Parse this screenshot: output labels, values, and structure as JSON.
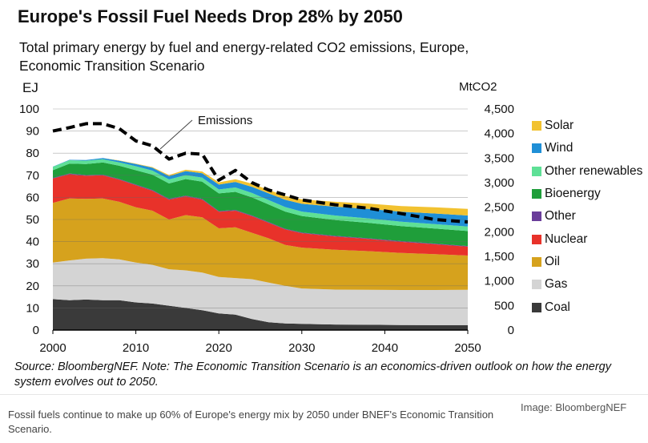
{
  "title": "Europe's Fossil Fuel Needs Drop 28%  by 2050",
  "subtitle": "Total primary energy by fuel and energy-related  CO2 emissions, Europe, Economic Transition Scenario",
  "source_note": "Source: BloombergNEF. Note: The Economic Transition Scenario is an economics-driven outlook on how the energy system evolves out to 2050.",
  "caption": "Fossil fuels continue to make up 60% of Europe's energy mix by 2050 under BNEF's Economic Transition Scenario.",
  "image_credit": "Image: BloombergNEF",
  "chart_data": {
    "type": "area",
    "ylabel": "EJ",
    "y2label": "MtCO2",
    "ylim": [
      0,
      100
    ],
    "y2lim": [
      0,
      4500
    ],
    "yticks": [
      0,
      10,
      20,
      30,
      40,
      50,
      60,
      70,
      80,
      90,
      100
    ],
    "y2ticks": [
      "0",
      "500",
      "1,000",
      "1,500",
      "2,000",
      "2,500",
      "3,000",
      "3,500",
      "4,000",
      "4,500"
    ],
    "y2tick_values": [
      0,
      500,
      1000,
      1500,
      2000,
      2500,
      3000,
      3500,
      4000,
      4500
    ],
    "xticks": [
      2000,
      2010,
      2020,
      2030,
      2040,
      2050
    ],
    "xlim": [
      2000,
      2050
    ],
    "x": [
      2000,
      2002,
      2004,
      2006,
      2008,
      2010,
      2012,
      2014,
      2016,
      2018,
      2020,
      2022,
      2024,
      2026,
      2028,
      2030,
      2034,
      2038,
      2042,
      2046,
      2050
    ],
    "stack_order": [
      "Coal",
      "Gas",
      "Oil",
      "Nuclear",
      "Other",
      "Bioenergy",
      "Other renewables",
      "Wind",
      "Solar"
    ],
    "series": [
      {
        "name": "Coal",
        "color": "#3a3a3a",
        "values": [
          14,
          13.5,
          13.8,
          13.5,
          13.5,
          12.5,
          12,
          11,
          10,
          9,
          7.5,
          7,
          5,
          3.5,
          3,
          2.8,
          2.5,
          2.4,
          2.3,
          2.2,
          2.2
        ]
      },
      {
        "name": "Gas",
        "color": "#d4d4d4",
        "values": [
          16.5,
          18,
          18.5,
          19,
          18.5,
          18,
          17.5,
          16.5,
          17,
          17,
          16.5,
          16.5,
          18,
          18,
          17,
          16,
          15.8,
          15.8,
          15.8,
          15.9,
          16
        ]
      },
      {
        "name": "Oil",
        "color": "#d6a21d",
        "values": [
          27,
          28,
          27,
          27,
          26,
          25,
          24.5,
          22.5,
          25,
          25,
          22,
          23,
          21,
          20,
          18.5,
          18.5,
          18,
          17.5,
          16.8,
          16.2,
          15.5
        ]
      },
      {
        "name": "Nuclear",
        "color": "#e8322a",
        "values": [
          11,
          11,
          10.5,
          10.5,
          10,
          10,
          9,
          9,
          8.5,
          8,
          7.5,
          7.5,
          7.5,
          7,
          7,
          6.5,
          6,
          5.5,
          5,
          4.5,
          4
        ]
      },
      {
        "name": "Other",
        "color": "#6a3d9a",
        "values": [
          0.3,
          0.3,
          0.3,
          0.3,
          0.3,
          0.3,
          0.3,
          0.3,
          0.3,
          0.3,
          0.3,
          0.3,
          0.3,
          0.3,
          0.3,
          0.3,
          0.3,
          0.3,
          0.3,
          0.3,
          0.3
        ]
      },
      {
        "name": "Bioenergy",
        "color": "#1f9e3a",
        "values": [
          3.5,
          4.5,
          5,
          5.5,
          6,
          6.5,
          7,
          7,
          7.5,
          7.8,
          8,
          8.2,
          8.2,
          8,
          7.8,
          7.5,
          7.2,
          7,
          6.8,
          6.8,
          6.8
        ]
      },
      {
        "name": "Other renewables",
        "color": "#5ee096",
        "values": [
          1.5,
          1.5,
          1.5,
          1.5,
          1.5,
          1.8,
          1.8,
          1.8,
          1.8,
          1.8,
          1.8,
          2,
          2,
          2,
          2,
          2,
          2,
          2,
          2,
          2,
          2
        ]
      },
      {
        "name": "Wind",
        "color": "#1f8fd6",
        "values": [
          0.1,
          0.2,
          0.3,
          0.5,
          0.8,
          1,
          1.3,
          1.5,
          1.8,
          2,
          2.2,
          2.5,
          2.8,
          3,
          3.3,
          3.5,
          4,
          4.3,
          4.5,
          4.8,
          5
        ]
      },
      {
        "name": "Solar",
        "color": "#f2c230",
        "values": [
          0,
          0,
          0,
          0,
          0.1,
          0.2,
          0.3,
          0.5,
          0.6,
          0.8,
          1,
          1.2,
          1.4,
          1.6,
          1.8,
          2,
          2.2,
          2.4,
          2.6,
          2.8,
          3
        ]
      }
    ],
    "emissions": {
      "name": "Emissions",
      "axis": "right",
      "x": [
        2000,
        2002,
        2004,
        2006,
        2008,
        2010,
        2012,
        2014,
        2016,
        2018,
        2020,
        2022,
        2024,
        2026,
        2028,
        2030,
        2034,
        2038,
        2042,
        2046,
        2050
      ],
      "values": [
        4050,
        4120,
        4200,
        4200,
        4100,
        3850,
        3750,
        3480,
        3600,
        3580,
        3050,
        3250,
        3000,
        2850,
        2750,
        2650,
        2550,
        2480,
        2370,
        2250,
        2200
      ]
    },
    "annotation": "Emissions",
    "legend_order": [
      "Solar",
      "Wind",
      "Other renewables",
      "Bioenergy",
      "Other",
      "Nuclear",
      "Oil",
      "Gas",
      "Coal"
    ],
    "legend_position": "right"
  }
}
